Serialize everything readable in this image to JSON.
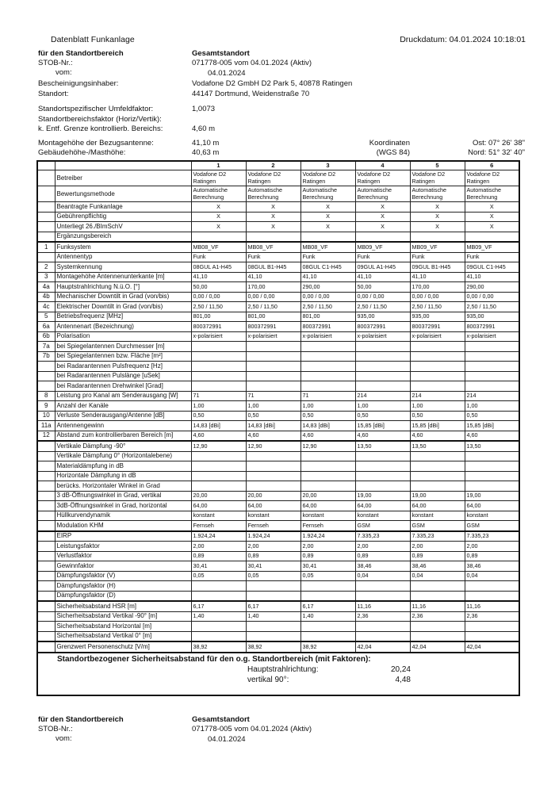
{
  "header": {
    "title": "Datenblatt Funkanlage",
    "print_date": "Druckdatum: 04.01.2024 10:18:01"
  },
  "info": {
    "area_label": "für den Standortbereich",
    "area_value": "Gesamtstandort",
    "stob_label": "STOB-Nr.:",
    "stob_value": "071778-005 vom 04.01.2024 (Aktiv)",
    "vom_label": "vom:",
    "vom_value": "04.01.2024",
    "holder_label": "Bescheinigungsinhaber:",
    "holder_value": "Vodafone D2 GmbH D2 Park 5, 40878 Ratingen",
    "site_label": "Standort:",
    "site_value": "44147 Dortmund, Weidenstraße 70",
    "env_factor_label": "Standortspezifischer Umfeldfaktor:",
    "env_factor_value": "1,0073",
    "area_factor_label": "Standortbereichsfaktor (Horiz/Vertik):",
    "distance_label": "k. Entf. Grenze kontrollierb. Bereichs:",
    "distance_value": "4,60 m",
    "mount_label": "Montagehöhe der Bezugsantenne:",
    "mount_value": "41,10 m",
    "building_label": "Gebäudehöhe-/Masthöhe:",
    "building_value": "40,63 m",
    "coord_label": "Koordinaten",
    "coord_system": "(WGS 84)",
    "east": "Ost: 07° 26' 38\"",
    "north": "Nord: 51° 32' 40\""
  },
  "table": {
    "columns": [
      "1",
      "2",
      "3",
      "4",
      "5",
      "6"
    ],
    "rows": [
      {
        "num": "",
        "label": "Betreiber",
        "values": [
          "Vodafone D2 Ratingen",
          "Vodafone D2 Ratingen",
          "Vodafone D2 Ratingen",
          "Vodafone D2 Ratingen",
          "Vodafone D2 Ratingen",
          "Vodafone D2 Ratingen"
        ]
      },
      {
        "num": "",
        "label": "Bewertungsmethode",
        "values": [
          "Automatische Berechnung",
          "Automatische Berechnung",
          "Automatische Berechnung",
          "Automatische Berechnung",
          "Automatische Berechnung",
          "Automatische Berechnung"
        ]
      },
      {
        "num": "",
        "label": "Beantragte Funkanlage",
        "values": [
          "X",
          "X",
          "X",
          "X",
          "X",
          "X"
        ]
      },
      {
        "num": "",
        "label": "Gebührenpflichtig",
        "values": [
          "X",
          "X",
          "X",
          "X",
          "X",
          "X"
        ]
      },
      {
        "num": "",
        "label": "Unterliegt 26./BImSchV",
        "values": [
          "X",
          "X",
          "X",
          "X",
          "X",
          "X"
        ]
      },
      {
        "num": "",
        "label": "Ergänzungsbereich",
        "values": [
          "",
          "",
          "",
          "",
          "",
          ""
        ]
      },
      {
        "num": "1",
        "label": "Funksystem",
        "values": [
          "MB08_VF",
          "MB08_VF",
          "MB08_VF",
          "MB09_VF",
          "MB09_VF",
          "MB09_VF"
        ]
      },
      {
        "num": "",
        "label": "Antennentyp",
        "values": [
          "Funk",
          "Funk",
          "Funk",
          "Funk",
          "Funk",
          "Funk"
        ]
      },
      {
        "num": "2",
        "label": "Systemkennung",
        "values": [
          "08GUL A1-H45",
          "08GUL B1-H45",
          "08GUL C1-H45",
          "09GUL A1-H45",
          "09GUL B1-H45",
          "09GUL C1-H45"
        ]
      },
      {
        "num": "3",
        "label": "Montagehöhe Antennenunterkante [m]",
        "values": [
          "41,10",
          "41,10",
          "41,10",
          "41,10",
          "41,10",
          "41,10"
        ]
      },
      {
        "num": "4a",
        "label": "Hauptstrahlrichtung N.ü.O. [°]",
        "values": [
          "50,00",
          "170,00",
          "290,00",
          "50,00",
          "170,00",
          "290,00"
        ]
      },
      {
        "num": "4b",
        "label": "Mechanischer Downtilt in Grad (von/bis)",
        "values": [
          "0,00 / 0,00",
          "0,00 / 0,00",
          "0,00 / 0,00",
          "0,00 / 0,00",
          "0,00 / 0,00",
          "0,00 / 0,00"
        ]
      },
      {
        "num": "4c",
        "label": "Elektrischer Downtilt in Grad (von/bis)",
        "values": [
          "2,50 / 11,50",
          "2,50 / 11,50",
          "2,50 / 11,50",
          "2,50 / 11,50",
          "2,50 / 11,50",
          "2,50 / 11,50"
        ]
      },
      {
        "num": "5",
        "label": "Betriebsfrequenz [MHz]",
        "values": [
          "801,00",
          "801,00",
          "801,00",
          "935,00",
          "935,00",
          "935,00"
        ]
      },
      {
        "num": "6a",
        "label": "Antennenart (Bezeichnung)",
        "values": [
          "800372991",
          "800372991",
          "800372991",
          "800372991",
          "800372991",
          "800372991"
        ]
      },
      {
        "num": "6b",
        "label": "Polarisation",
        "values": [
          "x-polarisiert",
          "x-polarisiert",
          "x-polarisiert",
          "x-polarisiert",
          "x-polarisiert",
          "x-polarisiert"
        ]
      },
      {
        "num": "7a",
        "label": "bei Spiegelantennen Durchmesser [m]",
        "values": [
          "",
          "",
          "",
          "",
          "",
          ""
        ]
      },
      {
        "num": "7b",
        "label": "bei Spiegelantennen bzw. Fläche [m²]",
        "values": [
          "",
          "",
          "",
          "",
          "",
          ""
        ]
      },
      {
        "num": "",
        "label": "bei Radarantennen Pulsfrequenz [Hz]",
        "values": [
          "",
          "",
          "",
          "",
          "",
          ""
        ]
      },
      {
        "num": "",
        "label": "bei Radarantennen Pulslänge [uSek]",
        "values": [
          "",
          "",
          "",
          "",
          "",
          ""
        ]
      },
      {
        "num": "",
        "label": "bei Radarantennen Drehwinkel [Grad]",
        "values": [
          "",
          "",
          "",
          "",
          "",
          ""
        ]
      },
      {
        "num": "8",
        "label": "Leistung pro Kanal am Senderausgang  [W]",
        "values": [
          "71",
          "71",
          "71",
          "214",
          "214",
          "214"
        ]
      },
      {
        "num": "9",
        "label": "Anzahl der Kanäle",
        "values": [
          "1,00",
          "1,00",
          "1,00",
          "1,00",
          "1,00",
          "1,00"
        ]
      },
      {
        "num": "10",
        "label": "Verluste Senderausgang/Antenne [dB]",
        "values": [
          "0,50",
          "0,50",
          "0,50",
          "0,50",
          "0,50",
          "0,50"
        ]
      },
      {
        "num": "11a",
        "label": "Antennengewinn",
        "values": [
          "14,83 [dBi]",
          "14,83 [dBi]",
          "14,83 [dBi]",
          "15,85 [dBi]",
          "15,85 [dBi]",
          "15,85 [dBi]"
        ]
      },
      {
        "num": "12",
        "label": "Abstand zum kontrollierbaren Bereich [m]",
        "values": [
          "4,60",
          "4,60",
          "4,60",
          "4,60",
          "4,60",
          "4,60"
        ]
      },
      {
        "num": "",
        "label": "Vertikale Dämpfung -90°",
        "values": [
          "12,90",
          "12,90",
          "12,90",
          "13,50",
          "13,50",
          "13,50"
        ]
      },
      {
        "num": "",
        "label": "Vertikale Dämpfung 0° (Horizontalebene)",
        "values": [
          "",
          "",
          "",
          "",
          "",
          ""
        ]
      },
      {
        "num": "",
        "label": "Materialdämpfung in dB",
        "values": [
          "",
          "",
          "",
          "",
          "",
          ""
        ]
      },
      {
        "num": "",
        "label": "Horizontale Dämpfung in dB",
        "values": [
          "",
          "",
          "",
          "",
          "",
          ""
        ]
      },
      {
        "num": "",
        "label": "berücks. Horizontaler Winkel in Grad",
        "values": [
          "",
          "",
          "",
          "",
          "",
          ""
        ]
      },
      {
        "num": "",
        "label": "3 dB-Öffnungswinkel in Grad, vertikal",
        "values": [
          "20,00",
          "20,00",
          "20,00",
          "19,00",
          "19,00",
          "19,00"
        ]
      },
      {
        "num": "",
        "label": "3dB-Öffnungswinkel in Grad, horizontal",
        "values": [
          "64,00",
          "64,00",
          "64,00",
          "64,00",
          "64,00",
          "64,00"
        ]
      },
      {
        "num": "",
        "label": "Hüllkurvendynamik",
        "values": [
          "konstant",
          "konstant",
          "konstant",
          "konstant",
          "konstant",
          "konstant"
        ]
      },
      {
        "num": "",
        "label": "Modulation KHM",
        "values": [
          "Fernseh",
          "Fernseh",
          "Fernseh",
          "GSM",
          "GSM",
          "GSM"
        ]
      },
      {
        "num": "",
        "label": "EIRP",
        "values": [
          "1.924,24",
          "1.924,24",
          "1.924,24",
          "7.335,23",
          "7.335,23",
          "7.335,23"
        ]
      },
      {
        "num": "",
        "label": "Leistungsfaktor",
        "values": [
          "2,00",
          "2,00",
          "2,00",
          "2,00",
          "2,00",
          "2,00"
        ]
      },
      {
        "num": "",
        "label": "Verlustfaktor",
        "values": [
          "0,89",
          "0,89",
          "0,89",
          "0,89",
          "0,89",
          "0,89"
        ]
      },
      {
        "num": "",
        "label": "Gewinnfaktor",
        "values": [
          "30,41",
          "30,41",
          "30,41",
          "38,46",
          "38,46",
          "38,46"
        ]
      },
      {
        "num": "",
        "label": "Dämpfungsfaktor (V)",
        "values": [
          "0,05",
          "0,05",
          "0,05",
          "0,04",
          "0,04",
          "0,04"
        ]
      },
      {
        "num": "",
        "label": "Dämpfungsfaktor (H)",
        "values": [
          "",
          "",
          "",
          "",
          "",
          ""
        ]
      },
      {
        "num": "",
        "label": "Dämpfungsfaktor (D)",
        "values": [
          "",
          "",
          "",
          "",
          "",
          ""
        ]
      },
      {
        "num": "",
        "label": "Sicherheitsabstand HSR [m]",
        "values": [
          "6,17",
          "6,17",
          "6,17",
          "11,16",
          "11,16",
          "11,16"
        ]
      },
      {
        "num": "",
        "label": "Sicherheitsabstand Vertikal -90° [m]",
        "values": [
          "1,40",
          "1,40",
          "1,40",
          "2,36",
          "2,36",
          "2,36"
        ]
      },
      {
        "num": "",
        "label": "Sicherheitsabstand Horizontal [m]",
        "values": [
          "",
          "",
          "",
          "",
          "",
          ""
        ]
      },
      {
        "num": "",
        "label": "Sicherheitsabstand Vertikal 0° [m]",
        "values": [
          "",
          "",
          "",
          "",
          "",
          ""
        ]
      },
      {
        "num": "",
        "label": "Grenzwert Personenschutz [V/m]",
        "values": [
          "38,92",
          "38,92",
          "38,92",
          "42,04",
          "42,04",
          "42,04"
        ]
      }
    ]
  },
  "summary": {
    "title": "Standortbezogener Sicherheitsabstand für den o.g. Standortbereich (mit Faktoren):",
    "main_label": "Hauptstrahlrichtung:",
    "main_value": "20,24",
    "vert_label": "vertikal 90°:",
    "vert_value": "4,48"
  },
  "footer": {
    "area_label": "für den Standortbereich",
    "area_value": "Gesamtstandort",
    "stob_label": "STOB-Nr.:",
    "stob_value": "071778-005 vom 04.01.2024 (Aktiv)",
    "vom_label": "vom:",
    "vom_value": "04.01.2024"
  }
}
